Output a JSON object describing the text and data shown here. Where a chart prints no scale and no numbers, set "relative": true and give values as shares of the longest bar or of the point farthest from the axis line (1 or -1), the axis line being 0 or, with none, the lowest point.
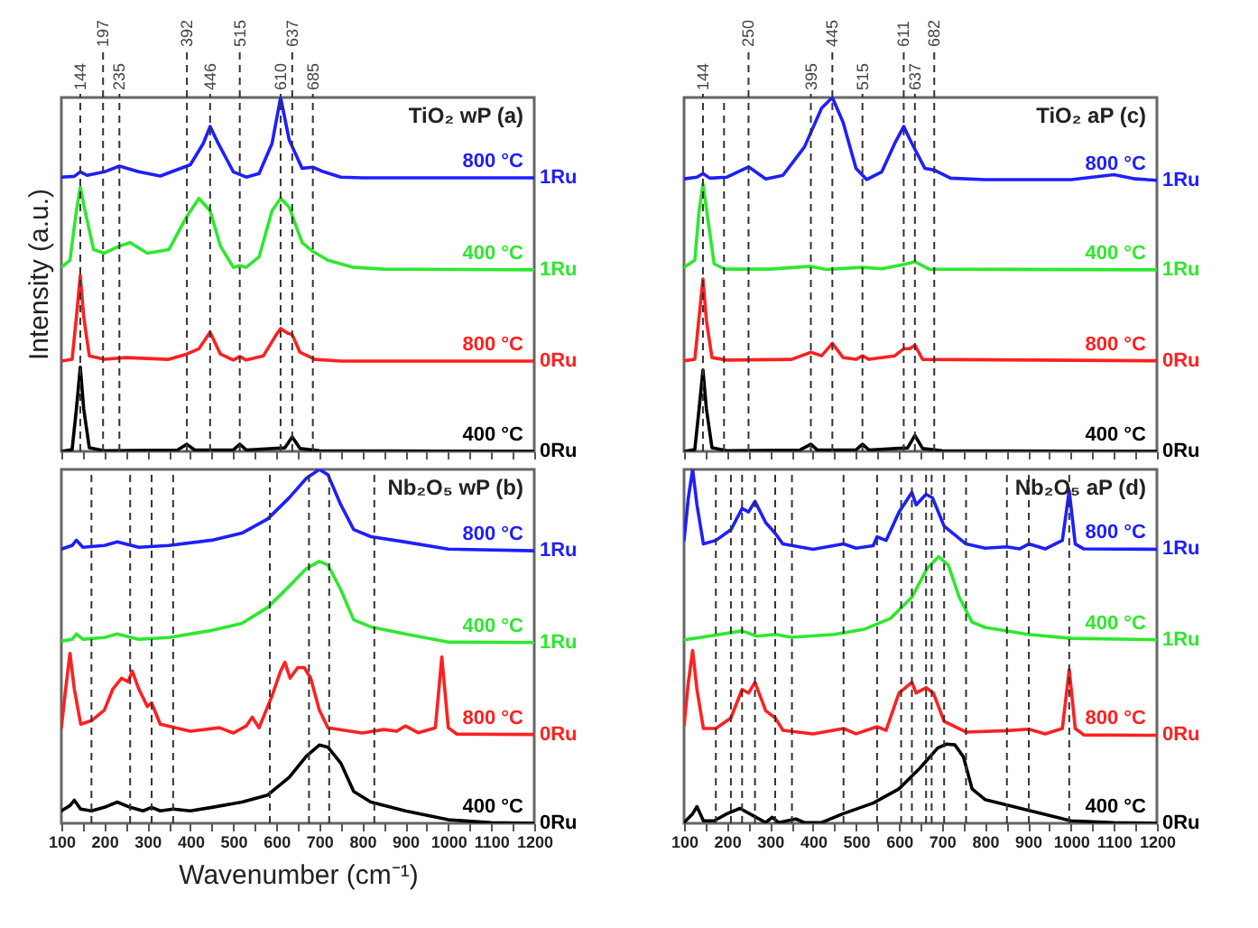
{
  "chart_data": [
    {
      "type": "line",
      "title": "TiO₂ wP  (a)",
      "ylabel": "Intensity (a.u.)",
      "relative": true,
      "xlim": [
        100,
        1200
      ],
      "xticks": [
        100,
        {
          "value": 150,
          "label": null
        },
        200,
        {
          "value": 250,
          "label": null
        },
        300,
        {
          "value": 350,
          "label": null
        },
        400,
        {
          "value": 450,
          "label": null
        },
        500,
        {
          "value": 550,
          "label": null
        },
        600,
        {
          "value": 650,
          "label": null
        },
        700,
        {
          "value": 750,
          "label": null
        },
        800,
        {
          "value": 850,
          "label": null
        },
        900,
        {
          "value": 950,
          "label": null
        },
        1000,
        {
          "value": 1050,
          "label": null
        },
        1100,
        {
          "value": 1150,
          "label": null
        },
        1200
      ],
      "tick_labels": false,
      "series": [
        {
          "name": "800 °C",
          "color": "#1e1eff",
          "x": [
            100,
            130,
            144,
            160,
            200,
            235,
            280,
            330,
            400,
            430,
            446,
            465,
            500,
            530,
            560,
            590,
            610,
            630,
            660,
            685,
            710,
            750,
            800,
            1200
          ],
          "values": [
            0.775,
            0.777,
            0.79,
            0.78,
            0.79,
            0.806,
            0.79,
            0.778,
            0.81,
            0.87,
            0.918,
            0.87,
            0.79,
            0.775,
            0.785,
            0.87,
            1.0,
            0.88,
            0.8,
            0.803,
            0.79,
            0.775,
            0.773,
            0.773
          ]
        },
        {
          "name": "400 °C",
          "color": "#2ee82e",
          "x": [
            100,
            120,
            135,
            144,
            155,
            175,
            200,
            235,
            260,
            300,
            350,
            390,
            420,
            446,
            470,
            500,
            515,
            530,
            560,
            590,
            610,
            630,
            660,
            685,
            720,
            780,
            850,
            1200
          ],
          "values": [
            0.52,
            0.54,
            0.68,
            0.747,
            0.68,
            0.57,
            0.56,
            0.58,
            0.59,
            0.56,
            0.57,
            0.66,
            0.715,
            0.68,
            0.58,
            0.52,
            0.525,
            0.52,
            0.55,
            0.68,
            0.715,
            0.69,
            0.59,
            0.565,
            0.54,
            0.52,
            0.515,
            0.513
          ]
        },
        {
          "name": "800 °C",
          "color": "#ff2020",
          "x": [
            100,
            125,
            135,
            144,
            152,
            165,
            200,
            250,
            350,
            392,
            420,
            446,
            470,
            500,
            515,
            530,
            570,
            600,
            610,
            625,
            637,
            655,
            690,
            750,
            1200
          ],
          "values": [
            0.255,
            0.26,
            0.38,
            0.497,
            0.38,
            0.27,
            0.26,
            0.265,
            0.26,
            0.275,
            0.29,
            0.337,
            0.275,
            0.258,
            0.268,
            0.258,
            0.27,
            0.33,
            0.347,
            0.335,
            0.33,
            0.28,
            0.26,
            0.255,
            0.255
          ]
        },
        {
          "name": "400 °C",
          "color": "#000000",
          "x": [
            100,
            125,
            135,
            144,
            152,
            165,
            200,
            370,
            392,
            410,
            500,
            515,
            530,
            620,
            637,
            655,
            700,
            1200
          ],
          "values": [
            0,
            0.005,
            0.12,
            0.238,
            0.12,
            0.01,
            0.002,
            0.004,
            0.02,
            0.004,
            0.004,
            0.02,
            0.004,
            0.01,
            0.041,
            0.008,
            0.002,
            0
          ]
        }
      ],
      "ref_lines": [
        {
          "axis": "x",
          "value": 144,
          "label": "144"
        },
        {
          "axis": "x",
          "value": 197,
          "label": "197"
        },
        {
          "axis": "x",
          "value": 235,
          "label": "235"
        },
        {
          "axis": "x",
          "value": 392,
          "label": "392"
        },
        {
          "axis": "x",
          "value": 446,
          "label": "446"
        },
        {
          "axis": "x",
          "value": 515,
          "label": "515"
        },
        {
          "axis": "x",
          "value": 610,
          "label": "610"
        },
        {
          "axis": "x",
          "value": 637,
          "label": "637"
        },
        {
          "axis": "x",
          "value": 685,
          "label": "685"
        }
      ],
      "annotations": [
        "1Ru",
        "1Ru",
        "0Ru",
        "0Ru"
      ]
    },
    {
      "type": "line",
      "title": "TiO₂ aP  (c)",
      "relative": true,
      "xlim": [
        100,
        1200
      ],
      "xticks": [
        100,
        {
          "value": 150,
          "label": null
        },
        200,
        {
          "value": 250,
          "label": null
        },
        300,
        {
          "value": 350,
          "label": null
        },
        400,
        {
          "value": 450,
          "label": null
        },
        500,
        {
          "value": 550,
          "label": null
        },
        600,
        {
          "value": 650,
          "label": null
        },
        700,
        {
          "value": 750,
          "label": null
        },
        800,
        {
          "value": 850,
          "label": null
        },
        900,
        {
          "value": 950,
          "label": null
        },
        1000,
        {
          "value": 1050,
          "label": null
        },
        1100,
        {
          "value": 1150,
          "label": null
        },
        1200
      ],
      "tick_labels": false,
      "series": [
        {
          "name": "800 °C",
          "color": "#1e1eff",
          "x": [
            100,
            130,
            144,
            160,
            200,
            250,
            290,
            330,
            380,
            420,
            445,
            470,
            500,
            525,
            560,
            590,
            611,
            630,
            660,
            682,
            720,
            800,
            1000,
            1100,
            1150,
            1200
          ],
          "values": [
            0.77,
            0.775,
            0.785,
            0.772,
            0.775,
            0.804,
            0.77,
            0.78,
            0.86,
            0.97,
            1.0,
            0.93,
            0.8,
            0.768,
            0.79,
            0.87,
            0.918,
            0.87,
            0.8,
            0.795,
            0.772,
            0.768,
            0.768,
            0.782,
            0.77,
            0.766
          ]
        },
        {
          "name": "400 °C",
          "color": "#2ee82e",
          "x": [
            100,
            125,
            135,
            144,
            155,
            170,
            195,
            300,
            395,
            430,
            515,
            560,
            611,
            637,
            670,
            1200
          ],
          "values": [
            0.52,
            0.54,
            0.68,
            0.756,
            0.66,
            0.53,
            0.515,
            0.515,
            0.523,
            0.514,
            0.52,
            0.516,
            0.528,
            0.536,
            0.515,
            0.513
          ]
        },
        {
          "name": "800 °C",
          "color": "#ff2020",
          "x": [
            100,
            125,
            135,
            144,
            152,
            165,
            200,
            350,
            395,
            420,
            445,
            470,
            500,
            515,
            530,
            590,
            611,
            625,
            637,
            655,
            1200
          ],
          "values": [
            0.256,
            0.26,
            0.38,
            0.487,
            0.37,
            0.265,
            0.258,
            0.26,
            0.28,
            0.27,
            0.305,
            0.265,
            0.26,
            0.27,
            0.26,
            0.27,
            0.29,
            0.29,
            0.3,
            0.26,
            0.256
          ]
        },
        {
          "name": "400 °C",
          "color": "#000000",
          "x": [
            100,
            125,
            135,
            144,
            152,
            165,
            200,
            370,
            395,
            410,
            500,
            515,
            530,
            620,
            637,
            655,
            700,
            1200
          ],
          "values": [
            0,
            0.005,
            0.12,
            0.23,
            0.12,
            0.01,
            0.002,
            0.004,
            0.02,
            0.004,
            0.004,
            0.02,
            0.004,
            0.01,
            0.045,
            0.008,
            0.002,
            0
          ]
        }
      ],
      "ref_lines": [
        {
          "axis": "x",
          "value": 144,
          "label": "144"
        },
        {
          "axis": "x",
          "value": 193,
          "label": null
        },
        {
          "axis": "x",
          "value": 250,
          "label": "250"
        },
        {
          "axis": "x",
          "value": 395,
          "label": "395"
        },
        {
          "axis": "x",
          "value": 445,
          "label": "445"
        },
        {
          "axis": "x",
          "value": 515,
          "label": "515"
        },
        {
          "axis": "x",
          "value": 611,
          "label": "611"
        },
        {
          "axis": "x",
          "value": 637,
          "label": "637"
        },
        {
          "axis": "x",
          "value": 682,
          "label": "682"
        }
      ],
      "annotations": [
        "1Ru",
        "1Ru",
        "0Ru",
        "0Ru"
      ]
    },
    {
      "type": "line",
      "title": "Nb₂O₅ wP (b)",
      "xlabel": "Wavenumber (cm⁻¹)",
      "relative": true,
      "xlim": [
        100,
        1200
      ],
      "xticks": [
        100,
        {
          "value": 150,
          "label": null
        },
        200,
        {
          "value": 250,
          "label": null
        },
        300,
        {
          "value": 350,
          "label": null
        },
        400,
        {
          "value": 450,
          "label": null
        },
        500,
        {
          "value": 550,
          "label": null
        },
        600,
        {
          "value": 650,
          "label": null
        },
        700,
        {
          "value": 750,
          "label": null
        },
        800,
        {
          "value": 850,
          "label": null
        },
        900,
        {
          "value": 950,
          "label": null
        },
        1000,
        {
          "value": 1050,
          "label": null
        },
        1100,
        {
          "value": 1150,
          "label": null
        },
        1200
      ],
      "tick_labels": "x",
      "series": [
        {
          "name": "800 °C",
          "color": "#1e1eff",
          "x": [
            100,
            125,
            135,
            150,
            200,
            230,
            280,
            350,
            450,
            520,
            580,
            630,
            670,
            700,
            720,
            750,
            780,
            820,
            900,
            1000,
            1200
          ],
          "values": [
            0.775,
            0.785,
            0.8,
            0.78,
            0.785,
            0.795,
            0.78,
            0.785,
            0.8,
            0.82,
            0.86,
            0.92,
            0.975,
            1.0,
            0.985,
            0.9,
            0.83,
            0.81,
            0.795,
            0.775,
            0.77
          ]
        },
        {
          "name": "400 °C",
          "color": "#2ee82e",
          "x": [
            100,
            125,
            135,
            150,
            200,
            230,
            280,
            350,
            450,
            520,
            580,
            630,
            670,
            700,
            720,
            750,
            780,
            820,
            900,
            1000,
            1200
          ],
          "values": [
            0.515,
            0.52,
            0.535,
            0.52,
            0.525,
            0.535,
            0.52,
            0.525,
            0.545,
            0.565,
            0.61,
            0.67,
            0.72,
            0.74,
            0.73,
            0.66,
            0.575,
            0.555,
            0.535,
            0.512,
            0.511
          ]
        },
        {
          "name": "800 °C",
          "color": "#ff2020",
          "x": [
            100,
            110,
            120,
            130,
            145,
            170,
            200,
            220,
            240,
            255,
            265,
            280,
            300,
            310,
            330,
            400,
            468,
            500,
            530,
            544,
            560,
            590,
            610,
            620,
            632,
            650,
            665,
            680,
            700,
            720,
            800,
            850,
            880,
            900,
            930,
            970,
            985,
            1000,
            1020,
            1200
          ],
          "values": [
            0.27,
            0.38,
            0.48,
            0.38,
            0.28,
            0.29,
            0.32,
            0.38,
            0.41,
            0.4,
            0.43,
            0.38,
            0.33,
            0.34,
            0.28,
            0.26,
            0.27,
            0.255,
            0.275,
            0.3,
            0.27,
            0.36,
            0.43,
            0.455,
            0.41,
            0.44,
            0.44,
            0.41,
            0.32,
            0.27,
            0.255,
            0.265,
            0.26,
            0.275,
            0.256,
            0.27,
            0.47,
            0.27,
            0.252,
            0.251
          ]
        },
        {
          "name": "400 °C",
          "color": "#000000",
          "x": [
            100,
            120,
            130,
            145,
            170,
            200,
            230,
            260,
            290,
            310,
            330,
            360,
            400,
            450,
            520,
            580,
            630,
            670,
            700,
            720,
            750,
            780,
            820,
            900,
            1000,
            1100,
            1200
          ],
          "values": [
            0.035,
            0.05,
            0.065,
            0.04,
            0.035,
            0.045,
            0.06,
            0.045,
            0.035,
            0.045,
            0.035,
            0.04,
            0.035,
            0.045,
            0.06,
            0.08,
            0.13,
            0.19,
            0.221,
            0.215,
            0.17,
            0.09,
            0.06,
            0.035,
            0.01,
            0.002,
            0
          ]
        }
      ],
      "ref_lines": [
        {
          "axis": "x",
          "value": 170,
          "label": null
        },
        {
          "axis": "x",
          "value": 260,
          "label": null
        },
        {
          "axis": "x",
          "value": 310,
          "label": null
        },
        {
          "axis": "x",
          "value": 360,
          "label": null
        },
        {
          "axis": "x",
          "value": 585,
          "label": null
        },
        {
          "axis": "x",
          "value": 676,
          "label": null
        },
        {
          "axis": "x",
          "value": 723,
          "label": null
        },
        {
          "axis": "x",
          "value": 828,
          "label": null
        }
      ],
      "annotations": [
        "1Ru",
        "1Ru",
        "0Ru",
        "0Ru"
      ]
    },
    {
      "type": "line",
      "title": "Nb₂O₅ aP (d)",
      "relative": true,
      "xlim": [
        100,
        1200
      ],
      "xticks": [
        100,
        {
          "value": 150,
          "label": null
        },
        200,
        {
          "value": 250,
          "label": null
        },
        300,
        {
          "value": 350,
          "label": null
        },
        400,
        {
          "value": 450,
          "label": null
        },
        500,
        {
          "value": 550,
          "label": null
        },
        600,
        {
          "value": 650,
          "label": null
        },
        700,
        {
          "value": 750,
          "label": null
        },
        800,
        {
          "value": 850,
          "label": null
        },
        900,
        {
          "value": 950,
          "label": null
        },
        1000,
        {
          "value": 1050,
          "label": null
        },
        1100,
        {
          "value": 1150,
          "label": null
        },
        1200
      ],
      "tick_labels": "x",
      "series": [
        {
          "name": "800 °C",
          "color": "#1e1eff",
          "x": [
            100,
            110,
            120,
            130,
            145,
            174,
            209,
            235,
            250,
            265,
            290,
            312,
            330,
            400,
            471,
            500,
            540,
            549,
            570,
            600,
            630,
            640,
            663,
            678,
            705,
            756,
            800,
            851,
            880,
            902,
            940,
            980,
            996,
            1010,
            1030,
            1200
          ],
          "values": [
            0.8,
            0.92,
            1.0,
            0.9,
            0.79,
            0.8,
            0.83,
            0.89,
            0.88,
            0.91,
            0.85,
            0.82,
            0.79,
            0.775,
            0.79,
            0.778,
            0.785,
            0.81,
            0.8,
            0.88,
            0.935,
            0.9,
            0.93,
            0.92,
            0.84,
            0.79,
            0.778,
            0.782,
            0.776,
            0.79,
            0.776,
            0.8,
            0.94,
            0.79,
            0.776,
            0.775
          ]
        },
        {
          "name": "400 °C",
          "color": "#2ee82e",
          "x": [
            100,
            130,
            235,
            270,
            312,
            350,
            450,
            520,
            580,
            630,
            665,
            692,
            715,
            740,
            770,
            800,
            900,
            1000,
            1200
          ],
          "values": [
            0.52,
            0.525,
            0.545,
            0.53,
            0.535,
            0.527,
            0.535,
            0.55,
            0.58,
            0.64,
            0.72,
            0.754,
            0.73,
            0.64,
            0.57,
            0.555,
            0.535,
            0.524,
            0.52
          ]
        },
        {
          "name": "800 °C",
          "color": "#ff2020",
          "x": [
            100,
            110,
            120,
            130,
            145,
            174,
            209,
            235,
            250,
            265,
            290,
            312,
            330,
            400,
            471,
            500,
            549,
            570,
            600,
            630,
            640,
            663,
            680,
            705,
            756,
            851,
            902,
            940,
            980,
            996,
            1010,
            1030,
            1200
          ],
          "values": [
            0.28,
            0.4,
            0.49,
            0.38,
            0.27,
            0.27,
            0.3,
            0.38,
            0.37,
            0.4,
            0.32,
            0.3,
            0.265,
            0.255,
            0.27,
            0.255,
            0.275,
            0.265,
            0.37,
            0.4,
            0.37,
            0.385,
            0.37,
            0.29,
            0.26,
            0.264,
            0.268,
            0.255,
            0.27,
            0.436,
            0.27,
            0.252,
            0.251
          ]
        },
        {
          "name": "400 °C",
          "color": "#000000",
          "x": [
            100,
            120,
            130,
            145,
            170,
            200,
            230,
            260,
            290,
            305,
            320,
            360,
            380,
            420,
            470,
            540,
            600,
            650,
            690,
            710,
            730,
            750,
            770,
            800,
            900,
            1000,
            1100,
            1200
          ],
          "values": [
            0.005,
            0.03,
            0.05,
            0.01,
            0.01,
            0.03,
            0.045,
            0.025,
            0.005,
            0.02,
            0.005,
            0.015,
            0.005,
            0.005,
            0.03,
            0.06,
            0.1,
            0.16,
            0.215,
            0.226,
            0.224,
            0.19,
            0.1,
            0.07,
            0.04,
            0.01,
            0.005,
            0.003
          ]
        }
      ],
      "ref_lines": [
        {
          "axis": "x",
          "value": 174,
          "label": null
        },
        {
          "axis": "x",
          "value": 209,
          "label": null
        },
        {
          "axis": "x",
          "value": 235,
          "label": null
        },
        {
          "axis": "x",
          "value": 265,
          "label": null
        },
        {
          "axis": "x",
          "value": 312,
          "label": null
        },
        {
          "axis": "x",
          "value": 351,
          "label": null
        },
        {
          "axis": "x",
          "value": 471,
          "label": null
        },
        {
          "axis": "x",
          "value": 549,
          "label": null
        },
        {
          "axis": "x",
          "value": 605,
          "label": null
        },
        {
          "axis": "x",
          "value": 630,
          "label": null
        },
        {
          "axis": "x",
          "value": 663,
          "label": null
        },
        {
          "axis": "x",
          "value": 676,
          "label": null
        },
        {
          "axis": "x",
          "value": 705,
          "label": null
        },
        {
          "axis": "x",
          "value": 756,
          "label": null
        },
        {
          "axis": "x",
          "value": 851,
          "label": null
        },
        {
          "axis": "x",
          "value": 902,
          "label": null
        },
        {
          "axis": "x",
          "value": 996,
          "label": null
        }
      ],
      "annotations": [
        "1Ru",
        "1Ru",
        "0Ru",
        "0Ru"
      ]
    }
  ]
}
